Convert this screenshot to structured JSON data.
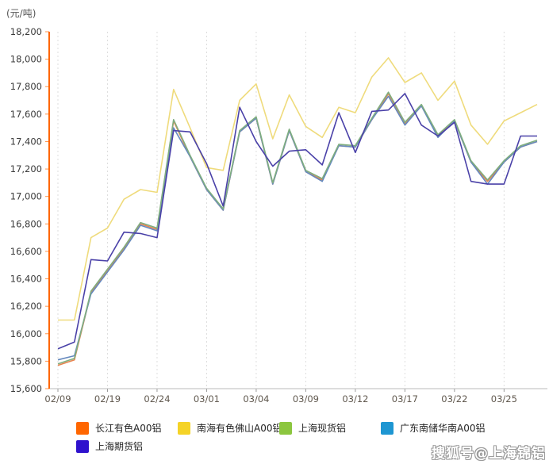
{
  "chart": {
    "unit_label": "(元/吨)",
    "watermark": "搜狐号@上海锦铝"
  },
  "chart_data": {
    "type": "line",
    "title": "",
    "ylabel": "(元/吨)",
    "ylim": [
      15600,
      18200
    ],
    "ytick_step": 200,
    "grid": "vertical-dotted",
    "legend_position": "bottom",
    "y_axis_color": "#FF6600",
    "x_axis_color": "#BBBBBB",
    "x_tick_labels_shown": [
      "02/09",
      "02/19",
      "02/24",
      "03/01",
      "03/04",
      "03/09",
      "03/12",
      "03/17",
      "03/22",
      "03/25"
    ],
    "categories": [
      "02/09",
      "02/10",
      "02/18",
      "02/19",
      "02/22",
      "02/23",
      "02/24",
      "02/25",
      "02/26",
      "03/01",
      "03/02",
      "03/03",
      "03/04",
      "03/05",
      "03/08",
      "03/09",
      "03/10",
      "03/11",
      "03/12",
      "03/15",
      "03/16",
      "03/17",
      "03/18",
      "03/19",
      "03/22",
      "03/23",
      "03/24",
      "03/25",
      "03/26",
      "03/29"
    ],
    "series": [
      {
        "name": "长江有色A00铝",
        "legend_color": "#FF6600",
        "line_color": "#E8834E",
        "values": [
          15770,
          15810,
          16300,
          16460,
          16620,
          16800,
          16760,
          17550,
          17290,
          17050,
          16900,
          17470,
          17570,
          17090,
          17480,
          17180,
          17120,
          17370,
          17360,
          17560,
          17750,
          17530,
          17660,
          17440,
          17550,
          17250,
          17110,
          17250,
          17360,
          17400
        ]
      },
      {
        "name": "南海有色佛山A00铝",
        "legend_color": "#F5D327",
        "line_color": "#EFDB7C",
        "values": [
          16100,
          16100,
          16700,
          16770,
          16980,
          17050,
          17030,
          17780,
          17500,
          17210,
          17190,
          17700,
          17820,
          17420,
          17740,
          17510,
          17430,
          17650,
          17610,
          17870,
          18010,
          17830,
          17900,
          17700,
          17840,
          17520,
          17380,
          17550,
          17610,
          17670
        ]
      },
      {
        "name": "上海现货铝",
        "legend_color": "#8CC63F",
        "line_color": "#7FAE7F",
        "values": [
          15780,
          15820,
          16310,
          16470,
          16630,
          16810,
          16770,
          17560,
          17300,
          17060,
          16910,
          17480,
          17580,
          17100,
          17490,
          17190,
          17130,
          17380,
          17370,
          17570,
          17760,
          17540,
          17670,
          17450,
          17560,
          17260,
          17120,
          17260,
          17370,
          17410
        ]
      },
      {
        "name": "广东南储华南A00铝",
        "legend_color": "#1E96D2",
        "line_color": "#6589BE",
        "values": [
          15810,
          15840,
          16290,
          16450,
          16610,
          16790,
          16750,
          17500,
          17290,
          17050,
          16900,
          17470,
          17570,
          17090,
          17480,
          17180,
          17110,
          17370,
          17360,
          17560,
          17730,
          17520,
          17660,
          17430,
          17550,
          17250,
          17090,
          17250,
          17360,
          17400
        ]
      },
      {
        "name": "上海期货铝",
        "legend_color": "#2F12CD",
        "line_color": "#4A41A8",
        "values": [
          15890,
          15940,
          16540,
          16530,
          16740,
          16730,
          16700,
          17480,
          17470,
          17240,
          16930,
          17650,
          17400,
          17220,
          17330,
          17340,
          17230,
          17610,
          17320,
          17620,
          17630,
          17750,
          17520,
          17440,
          17540,
          17110,
          17090,
          17090,
          17440,
          17440
        ]
      }
    ]
  }
}
